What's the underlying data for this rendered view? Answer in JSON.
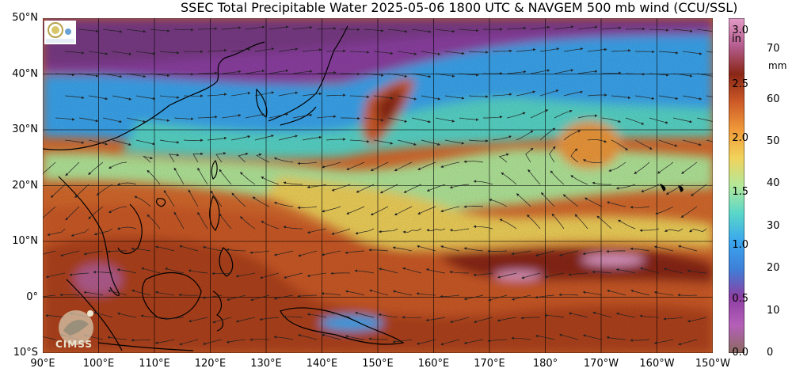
{
  "title": "SSEC Total Precipitable Water  2025-05-06 1800 UTC & NAVGEM 500 mb wind (CCU/SSL)",
  "map": {
    "extent_lon": [
      90,
      210
    ],
    "extent_lat": [
      -10,
      50
    ],
    "lat_labels": [
      "50°N",
      "40°N",
      "30°N",
      "20°N",
      "10°N",
      "0°",
      "10°S"
    ],
    "lat_values": [
      50,
      40,
      30,
      20,
      10,
      0,
      -10
    ],
    "lon_labels": [
      "90°E",
      "100°E",
      "110°E",
      "120°E",
      "130°E",
      "140°E",
      "150°E",
      "160°E",
      "170°E",
      "180°",
      "170°W",
      "160°W",
      "150°W"
    ],
    "lon_values": [
      90,
      100,
      110,
      120,
      130,
      140,
      150,
      160,
      170,
      180,
      190,
      200,
      210
    ]
  },
  "colorbar": {
    "inch_labels": [
      "3.0",
      "2.5",
      "2.0",
      "1.5",
      "1.0",
      "0.5",
      "0.0"
    ],
    "inch_values": [
      3.0,
      2.5,
      2.0,
      1.5,
      1.0,
      0.5,
      0.0
    ],
    "inch_unit": "in",
    "mm_labels": [
      "70",
      "60",
      "50",
      "40",
      "30",
      "20",
      "10",
      "0"
    ],
    "mm_values": [
      70,
      60,
      50,
      40,
      30,
      20,
      10,
      0
    ],
    "mm_unit": "mm",
    "colors": [
      "#8b6b5e",
      "#b55fb9",
      "#8d3fa3",
      "#3e7fd8",
      "#3aa6ef",
      "#59d7c9",
      "#b3e89a",
      "#f1d25a",
      "#f09a3a",
      "#cd5a27",
      "#8a2616",
      "#b45d8f",
      "#e39bc6"
    ]
  },
  "logos": {
    "cimss": "CIMSS"
  }
}
